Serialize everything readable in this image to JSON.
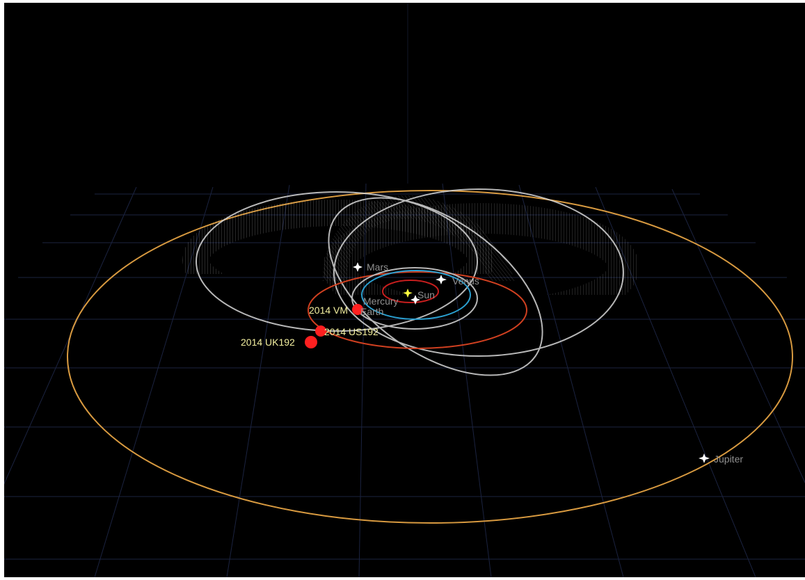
{
  "colors": {
    "background": "#000000",
    "grid": "#1b2340",
    "planet_label": "#8f8f8f",
    "asteroid_label": "#f4f0a0",
    "asteroid_body": "#ff2020",
    "sun": "#ffff40",
    "planet_marker": "#ffffff"
  },
  "bodies": {
    "sun": {
      "label": "Sun",
      "icon": "sun-icon"
    },
    "planets": [
      {
        "id": "mercury",
        "label": "Mercury",
        "icon": "star-icon",
        "orbit_color": "#c81e1e"
      },
      {
        "id": "venus",
        "label": "Venus",
        "icon": "star-icon",
        "orbit_color": "#a0a0a0"
      },
      {
        "id": "earth",
        "label": "Earth",
        "icon": "star-icon",
        "orbit_color": "#2a9fd0"
      },
      {
        "id": "mars",
        "label": "Mars",
        "icon": "star-icon",
        "orbit_color": "#d04020"
      },
      {
        "id": "jupiter",
        "label": "Jupiter",
        "icon": "star-icon",
        "orbit_color": "#d89a40"
      }
    ],
    "asteroids": [
      {
        "id": "2014-vm",
        "label": "2014 VM",
        "orbit_color": "#d8d8d8"
      },
      {
        "id": "2014-us192",
        "label": "2014 US192",
        "orbit_color": "#d8d8d8"
      },
      {
        "id": "2014-uk192",
        "label": "2014 UK192",
        "orbit_color": "#d8d8d8"
      }
    ]
  }
}
